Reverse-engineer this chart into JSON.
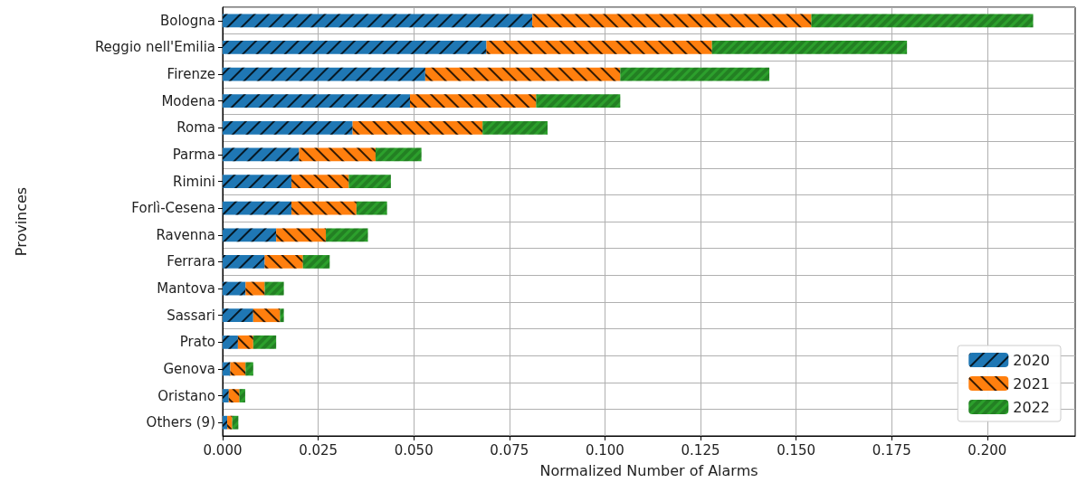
{
  "chart_data": {
    "type": "bar",
    "orientation": "horizontal",
    "stacked": true,
    "xlabel": "Normalized Number of Alarms",
    "ylabel": "Provinces",
    "categories": [
      "Bologna",
      "Reggio nell'Emilia",
      "Firenze",
      "Modena",
      "Roma",
      "Parma",
      "Rimini",
      "Forlì-Cesena",
      "Ravenna",
      "Ferrara",
      "Mantova",
      "Sassari",
      "Prato",
      "Genova",
      "Oristano",
      "Others (9)"
    ],
    "series": [
      {
        "name": "2020",
        "color": "#1f77b4",
        "values": [
          0.081,
          0.069,
          0.053,
          0.049,
          0.034,
          0.02,
          0.018,
          0.018,
          0.014,
          0.011,
          0.006,
          0.008,
          0.004,
          0.002,
          0.0016,
          0.0012
        ]
      },
      {
        "name": "2021",
        "color": "#ff7f0e",
        "values": [
          0.073,
          0.059,
          0.051,
          0.033,
          0.034,
          0.02,
          0.015,
          0.017,
          0.013,
          0.01,
          0.005,
          0.007,
          0.004,
          0.004,
          0.0028,
          0.0013
        ]
      },
      {
        "name": "2022",
        "color": "#2ca02c",
        "values": [
          0.058,
          0.051,
          0.039,
          0.022,
          0.017,
          0.012,
          0.011,
          0.008,
          0.011,
          0.007,
          0.005,
          0.001,
          0.006,
          0.002,
          0.0015,
          0.0016
        ]
      }
    ],
    "xlim": [
      0,
      0.223
    ],
    "xticks": [
      {
        "value": 0,
        "label": "0.000"
      },
      {
        "value": 0.025,
        "label": "0.025"
      },
      {
        "value": 0.05,
        "label": "0.050"
      },
      {
        "value": 0.075,
        "label": "0.075"
      },
      {
        "value": 0.1,
        "label": "0.100"
      },
      {
        "value": 0.125,
        "label": "0.125"
      },
      {
        "value": 0.15,
        "label": "0.150"
      },
      {
        "value": 0.175,
        "label": "0.175"
      },
      {
        "value": 0.2,
        "label": "0.200"
      }
    ],
    "grid": true,
    "legend": "bottom right"
  }
}
